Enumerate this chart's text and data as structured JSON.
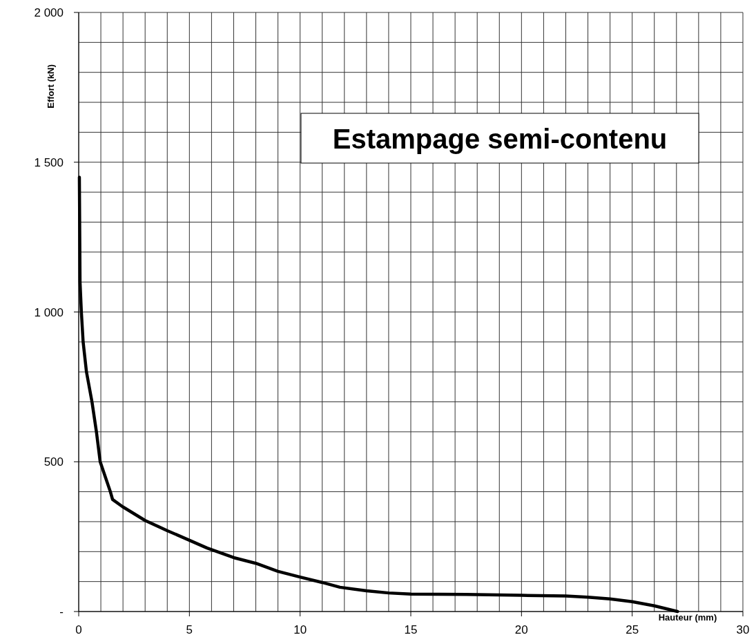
{
  "chart_data": {
    "type": "line",
    "title": "Estampage semi-contenu",
    "xlabel": "Hauteur (mm)",
    "ylabel": "Effort (kN)",
    "xlim": [
      0,
      30
    ],
    "ylim": [
      0,
      2000
    ],
    "xticks": [
      0,
      {
        "value": 1,
        "label": null
      },
      {
        "value": 2,
        "label": null
      },
      {
        "value": 3,
        "label": null
      },
      {
        "value": 4,
        "label": null
      },
      5,
      {
        "value": 6,
        "label": null
      },
      {
        "value": 7,
        "label": null
      },
      {
        "value": 8,
        "label": null
      },
      {
        "value": 9,
        "label": null
      },
      10,
      {
        "value": 11,
        "label": null
      },
      {
        "value": 12,
        "label": null
      },
      {
        "value": 13,
        "label": null
      },
      {
        "value": 14,
        "label": null
      },
      15,
      {
        "value": 16,
        "label": null
      },
      {
        "value": 17,
        "label": null
      },
      {
        "value": 18,
        "label": null
      },
      {
        "value": 19,
        "label": null
      },
      20,
      {
        "value": 21,
        "label": null
      },
      {
        "value": 22,
        "label": null
      },
      {
        "value": 23,
        "label": null
      },
      {
        "value": 24,
        "label": null
      },
      25,
      {
        "value": 26,
        "label": null
      },
      {
        "value": 27,
        "label": null
      },
      {
        "value": 28,
        "label": null
      },
      {
        "value": 29,
        "label": null
      },
      30
    ],
    "yticks": [
      {
        "value": 0,
        "label": "-"
      },
      {
        "value": 100,
        "label": null
      },
      {
        "value": 200,
        "label": null
      },
      {
        "value": 300,
        "label": null
      },
      {
        "value": 400,
        "label": null
      },
      500,
      {
        "value": 600,
        "label": null
      },
      {
        "value": 700,
        "label": null
      },
      {
        "value": 800,
        "label": null
      },
      {
        "value": 900,
        "label": null
      },
      {
        "value": 1000,
        "label": "1 000"
      },
      {
        "value": 1100,
        "label": null
      },
      {
        "value": 1200,
        "label": null
      },
      {
        "value": 1300,
        "label": null
      },
      {
        "value": 1400,
        "label": null
      },
      {
        "value": 1500,
        "label": "1 500"
      },
      {
        "value": 1600,
        "label": null
      },
      {
        "value": 1700,
        "label": null
      },
      {
        "value": 1800,
        "label": null
      },
      {
        "value": 1900,
        "label": null
      },
      {
        "value": 2000,
        "label": "2 000"
      }
    ],
    "grid": true,
    "marker": "none",
    "line_style": "solid",
    "series": [
      {
        "color": "#000000",
        "x": [
          0.03,
          0.06,
          0.12,
          0.2,
          0.35,
          0.6,
          0.8,
          0.97,
          1.2,
          1.43,
          1.53,
          1.98,
          3.0,
          4.0,
          5.0,
          5.8,
          7.0,
          8.0,
          9.0,
          10.0,
          11.0,
          11.8,
          13.0,
          14.0,
          15.0,
          17.5,
          20.0,
          22.0,
          23.0,
          24.0,
          25.0,
          26.0,
          27.05
        ],
        "values": [
          1450,
          1100,
          1000,
          900,
          800,
          700,
          600,
          500,
          450,
          400,
          374,
          350,
          304,
          270,
          238,
          212,
          180,
          161,
          134,
          115,
          97,
          81,
          69,
          62,
          58,
          57,
          54,
          52,
          48,
          42,
          33,
          19,
          0
        ]
      }
    ]
  }
}
